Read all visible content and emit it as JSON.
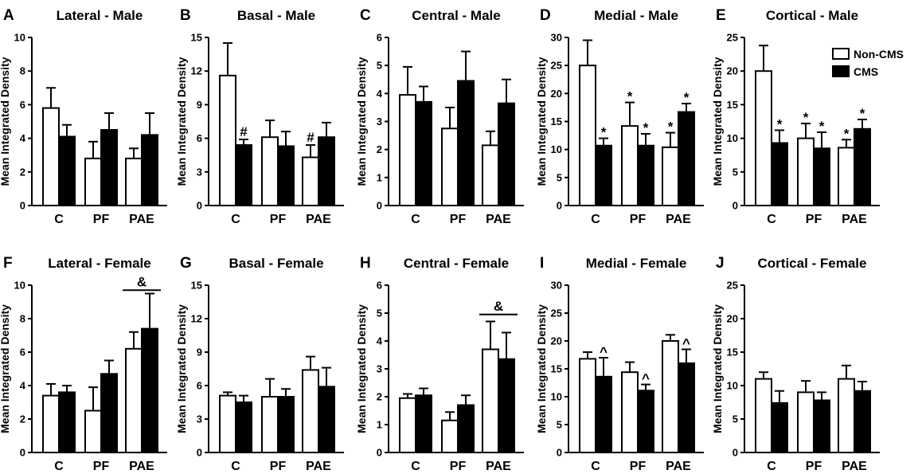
{
  "legend": {
    "items": [
      {
        "label": "Non-CMS",
        "fill": "#ffffff"
      },
      {
        "label": "CMS",
        "fill": "#000000"
      }
    ]
  },
  "colors": {
    "non_cms": "#ffffff",
    "cms": "#000000",
    "stroke": "#000000"
  },
  "chart_data": [
    {
      "type": "bar",
      "panel": "A",
      "title": "Lateral - Male",
      "ylabel": "Mean Integrated Density",
      "xlabel": "",
      "categories": [
        "C",
        "PF",
        "PAE"
      ],
      "ylim": [
        0,
        10
      ],
      "yticks": [
        0,
        2,
        4,
        6,
        8,
        10
      ],
      "series": [
        {
          "name": "Non-CMS",
          "values": [
            5.8,
            2.8,
            2.8
          ],
          "errors": [
            1.2,
            1.0,
            0.6
          ]
        },
        {
          "name": "CMS",
          "values": [
            4.1,
            4.5,
            4.2
          ],
          "errors": [
            0.7,
            1.0,
            1.3
          ]
        }
      ],
      "annotations": [],
      "group_annotations": []
    },
    {
      "type": "bar",
      "panel": "B",
      "title": "Basal - Male",
      "ylabel": "Mean Integrated Density",
      "xlabel": "",
      "categories": [
        "C",
        "PF",
        "PAE"
      ],
      "ylim": [
        0,
        15
      ],
      "yticks": [
        0,
        3,
        6,
        9,
        12,
        15
      ],
      "series": [
        {
          "name": "Non-CMS",
          "values": [
            11.6,
            6.1,
            4.3
          ],
          "errors": [
            2.9,
            1.5,
            1.1
          ]
        },
        {
          "name": "CMS",
          "values": [
            5.4,
            5.3,
            6.1
          ],
          "errors": [
            0.5,
            1.3,
            1.3
          ]
        }
      ],
      "annotations": [
        {
          "cat": 0,
          "series": 1,
          "text": "#"
        },
        {
          "cat": 2,
          "series": 0,
          "text": "#"
        }
      ],
      "group_annotations": []
    },
    {
      "type": "bar",
      "panel": "C",
      "title": "Central - Male",
      "ylabel": "Mean Integrated Density",
      "xlabel": "",
      "categories": [
        "C",
        "PF",
        "PAE"
      ],
      "ylim": [
        0,
        6
      ],
      "yticks": [
        0,
        1,
        2,
        3,
        4,
        5,
        6
      ],
      "series": [
        {
          "name": "Non-CMS",
          "values": [
            3.95,
            2.75,
            2.15
          ],
          "errors": [
            1.0,
            0.75,
            0.5
          ]
        },
        {
          "name": "CMS",
          "values": [
            3.7,
            4.45,
            3.65
          ],
          "errors": [
            0.55,
            1.05,
            0.85
          ]
        }
      ],
      "annotations": [],
      "group_annotations": []
    },
    {
      "type": "bar",
      "panel": "D",
      "title": "Medial - Male",
      "ylabel": "Mean Integrated Density",
      "xlabel": "",
      "categories": [
        "C",
        "PF",
        "PAE"
      ],
      "ylim": [
        0,
        30
      ],
      "yticks": [
        0,
        5,
        10,
        15,
        20,
        25,
        30
      ],
      "series": [
        {
          "name": "Non-CMS",
          "values": [
            25.0,
            14.2,
            10.4
          ],
          "errors": [
            4.5,
            4.2,
            2.6
          ]
        },
        {
          "name": "CMS",
          "values": [
            10.7,
            10.7,
            16.7
          ],
          "errors": [
            1.3,
            2.1,
            1.5
          ]
        }
      ],
      "annotations": [
        {
          "cat": 0,
          "series": 1,
          "text": "*"
        },
        {
          "cat": 1,
          "series": 0,
          "text": "*"
        },
        {
          "cat": 1,
          "series": 1,
          "text": "*"
        },
        {
          "cat": 2,
          "series": 0,
          "text": "*"
        },
        {
          "cat": 2,
          "series": 1,
          "text": "*"
        }
      ],
      "group_annotations": []
    },
    {
      "type": "bar",
      "panel": "E",
      "title": "Cortical - Male",
      "ylabel": "Mean Integrated Density",
      "xlabel": "",
      "categories": [
        "C",
        "PF",
        "PAE"
      ],
      "ylim": [
        0,
        25
      ],
      "yticks": [
        0,
        5,
        10,
        15,
        20,
        25
      ],
      "series": [
        {
          "name": "Non-CMS",
          "values": [
            20.0,
            10.0,
            8.6
          ],
          "errors": [
            3.8,
            2.2,
            1.2
          ]
        },
        {
          "name": "CMS",
          "values": [
            9.3,
            8.5,
            11.4
          ],
          "errors": [
            1.9,
            2.4,
            1.4
          ]
        }
      ],
      "annotations": [
        {
          "cat": 0,
          "series": 1,
          "text": "*"
        },
        {
          "cat": 1,
          "series": 0,
          "text": "*"
        },
        {
          "cat": 1,
          "series": 1,
          "text": "*"
        },
        {
          "cat": 2,
          "series": 0,
          "text": "*"
        },
        {
          "cat": 2,
          "series": 1,
          "text": "*"
        }
      ],
      "group_annotations": []
    },
    {
      "type": "bar",
      "panel": "F",
      "title": "Lateral - Female",
      "ylabel": "Mean Integrated Density",
      "xlabel": "",
      "categories": [
        "C",
        "PF",
        "PAE"
      ],
      "ylim": [
        0,
        10
      ],
      "yticks": [
        0,
        2,
        4,
        6,
        8,
        10
      ],
      "series": [
        {
          "name": "Non-CMS",
          "values": [
            3.4,
            2.5,
            6.2
          ],
          "errors": [
            0.7,
            1.4,
            1.0
          ]
        },
        {
          "name": "CMS",
          "values": [
            3.6,
            4.7,
            7.4
          ],
          "errors": [
            0.4,
            0.8,
            2.1
          ]
        }
      ],
      "annotations": [],
      "group_annotations": [
        {
          "cat": 2,
          "text": "&",
          "y": 9.7
        }
      ]
    },
    {
      "type": "bar",
      "panel": "G",
      "title": "Basal - Female",
      "ylabel": "Mean Integrated Density",
      "xlabel": "",
      "categories": [
        "C",
        "PF",
        "PAE"
      ],
      "ylim": [
        0,
        15
      ],
      "yticks": [
        0,
        3,
        6,
        9,
        12,
        15
      ],
      "series": [
        {
          "name": "Non-CMS",
          "values": [
            5.1,
            5.0,
            7.4
          ],
          "errors": [
            0.3,
            1.6,
            1.2
          ]
        },
        {
          "name": "CMS",
          "values": [
            4.5,
            5.0,
            5.9
          ],
          "errors": [
            0.6,
            0.7,
            1.7
          ]
        }
      ],
      "annotations": [],
      "group_annotations": []
    },
    {
      "type": "bar",
      "panel": "H",
      "title": "Central - Female",
      "ylabel": "Mean Integrated Density",
      "xlabel": "",
      "categories": [
        "C",
        "PF",
        "PAE"
      ],
      "ylim": [
        0,
        6
      ],
      "yticks": [
        0,
        1,
        2,
        3,
        4,
        5,
        6
      ],
      "series": [
        {
          "name": "Non-CMS",
          "values": [
            1.95,
            1.15,
            3.7
          ],
          "errors": [
            0.15,
            0.3,
            1.0
          ]
        },
        {
          "name": "CMS",
          "values": [
            2.05,
            1.7,
            3.35
          ],
          "errors": [
            0.25,
            0.35,
            0.95
          ]
        }
      ],
      "annotations": [],
      "group_annotations": [
        {
          "cat": 2,
          "text": "&",
          "y": 4.95
        }
      ]
    },
    {
      "type": "bar",
      "panel": "I",
      "title": "Medial - Female",
      "ylabel": "Mean Integrated Density",
      "xlabel": "",
      "categories": [
        "C",
        "PF",
        "PAE"
      ],
      "ylim": [
        0,
        30
      ],
      "yticks": [
        0,
        5,
        10,
        15,
        20,
        25,
        30
      ],
      "series": [
        {
          "name": "Non-CMS",
          "values": [
            16.8,
            14.4,
            20.0
          ],
          "errors": [
            1.2,
            1.8,
            1.1
          ]
        },
        {
          "name": "CMS",
          "values": [
            13.6,
            11.1,
            16.0
          ],
          "errors": [
            3.4,
            1.1,
            2.5
          ]
        }
      ],
      "annotations": [
        {
          "cat": 0,
          "series": 1,
          "text": "^"
        },
        {
          "cat": 1,
          "series": 1,
          "text": "^"
        },
        {
          "cat": 2,
          "series": 1,
          "text": "^"
        }
      ],
      "group_annotations": []
    },
    {
      "type": "bar",
      "panel": "J",
      "title": "Cortical - Female",
      "ylabel": "Mean Integrated Density",
      "xlabel": "",
      "categories": [
        "C",
        "PF",
        "PAE"
      ],
      "ylim": [
        0,
        25
      ],
      "yticks": [
        0,
        5,
        10,
        15,
        20,
        25
      ],
      "series": [
        {
          "name": "Non-CMS",
          "values": [
            11.0,
            9.0,
            11.0
          ],
          "errors": [
            1.0,
            1.7,
            2.0
          ]
        },
        {
          "name": "CMS",
          "values": [
            7.4,
            7.8,
            9.2
          ],
          "errors": [
            1.8,
            1.2,
            1.4
          ]
        }
      ],
      "annotations": [],
      "group_annotations": []
    }
  ]
}
